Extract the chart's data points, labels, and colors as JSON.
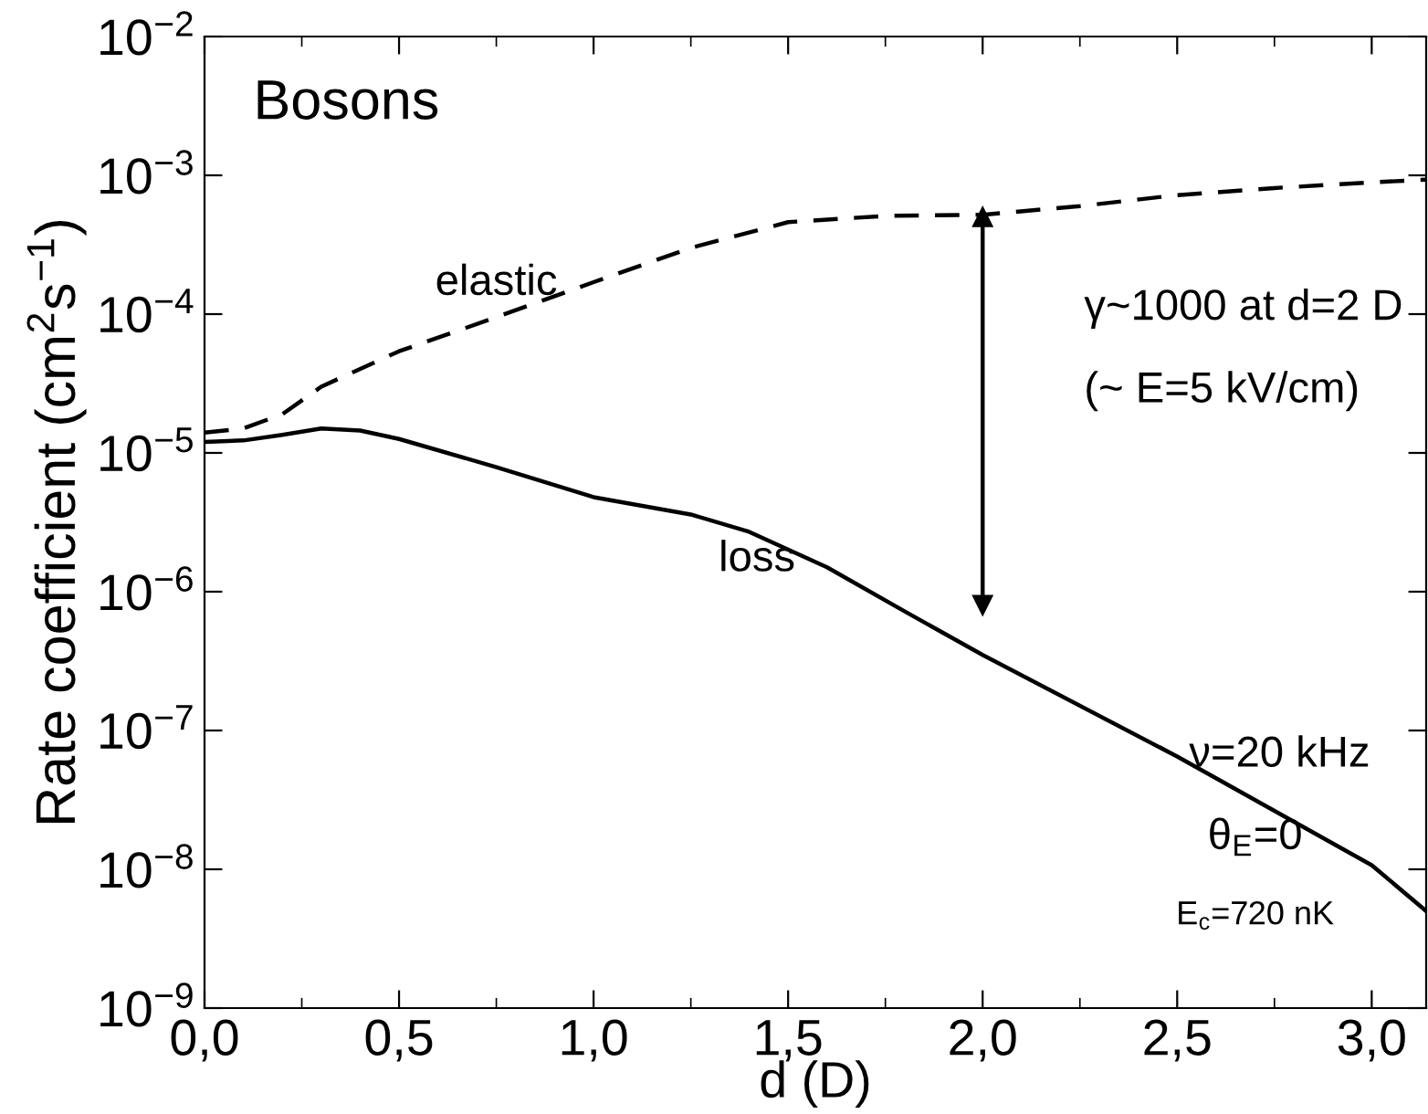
{
  "chart_data": {
    "type": "line",
    "xlabel": "d (D)",
    "ylabel": "Rate coefficient (cm$^{2}$s$^{−1}$)",
    "log": "y",
    "xlim": [
      0,
      3.14
    ],
    "xticks": [
      {
        "value": 0,
        "label": "0,0"
      },
      {
        "value": 0.5,
        "label": "0,5"
      },
      {
        "value": 1.0,
        "label": "1,0"
      },
      {
        "value": 1.5,
        "label": "1,5"
      },
      {
        "value": 2.0,
        "label": "2,0"
      },
      {
        "value": 2.5,
        "label": "2,5"
      },
      {
        "value": 3.0,
        "label": "3,0"
      }
    ],
    "ylim": [
      1e-09,
      0.01
    ],
    "yticks": [
      {
        "value": 1e-09,
        "label": "10$^{−9}$"
      },
      {
        "value": 1e-08,
        "label": "10$^{−8}$"
      },
      {
        "value": 1e-07,
        "label": "10$^{−7}$"
      },
      {
        "value": 1e-06,
        "label": "10$^{−6}$"
      },
      {
        "value": 1e-05,
        "label": "10$^{−5}$"
      },
      {
        "value": 0.0001,
        "label": "10$^{−4}$"
      },
      {
        "value": 0.001,
        "label": "10$^{−3}$"
      },
      {
        "value": 0.01,
        "label": "10$^{−2}$"
      }
    ],
    "series": [
      {
        "line_style": "dashed",
        "color": "#000000",
        "x": [
          0,
          0.1,
          0.2,
          0.3,
          0.5,
          0.75,
          1.0,
          1.25,
          1.5,
          1.75,
          2.0,
          2.25,
          2.5,
          2.75,
          3.0,
          3.14
        ],
        "values": [
          1.4e-05,
          1.5e-05,
          1.9e-05,
          3e-05,
          5.4e-05,
          9.5e-05,
          0.00017,
          0.0003,
          0.00046,
          0.00051,
          0.00052,
          0.0006,
          0.00072,
          0.00081,
          0.00089,
          0.00093
        ]
      },
      {
        "line_style": "solid",
        "color": "#000000",
        "x": [
          0,
          0.1,
          0.2,
          0.3,
          0.4,
          0.5,
          0.75,
          1.0,
          1.25,
          1.4,
          1.6,
          1.8,
          2.0,
          2.5,
          3.0,
          3.14
        ],
        "values": [
          1.2e-05,
          1.23e-05,
          1.35e-05,
          1.5e-05,
          1.45e-05,
          1.26e-05,
          7.9e-06,
          4.8e-06,
          3.6e-06,
          2.7e-06,
          1.5e-06,
          7.2e-07,
          3.5e-07,
          6.5e-08,
          1.07e-08,
          5e-09
        ]
      },
      {
        "line_style": "solid",
        "marker": "triangle",
        "color": "#000000",
        "x": [
          2.0,
          2.0
        ],
        "values": [
          0.0005,
          8e-07
        ]
      }
    ],
    "annotations": [
      {
        "text": "Bosons"
      },
      {
        "text": "elastic",
        "x": 0.75,
        "y": 9.5e-05
      },
      {
        "text": "loss",
        "x": 1.4,
        "y": 2.7e-06
      },
      {
        "text": "γ~1000 at d=2 D"
      },
      {
        "text": "(~ E=5 kV/cm)"
      },
      {
        "text": "ν=20 kHz"
      },
      {
        "text": "θ$_{E}$=0"
      },
      {
        "text": "E$_{c}$=720 nK"
      }
    ]
  }
}
